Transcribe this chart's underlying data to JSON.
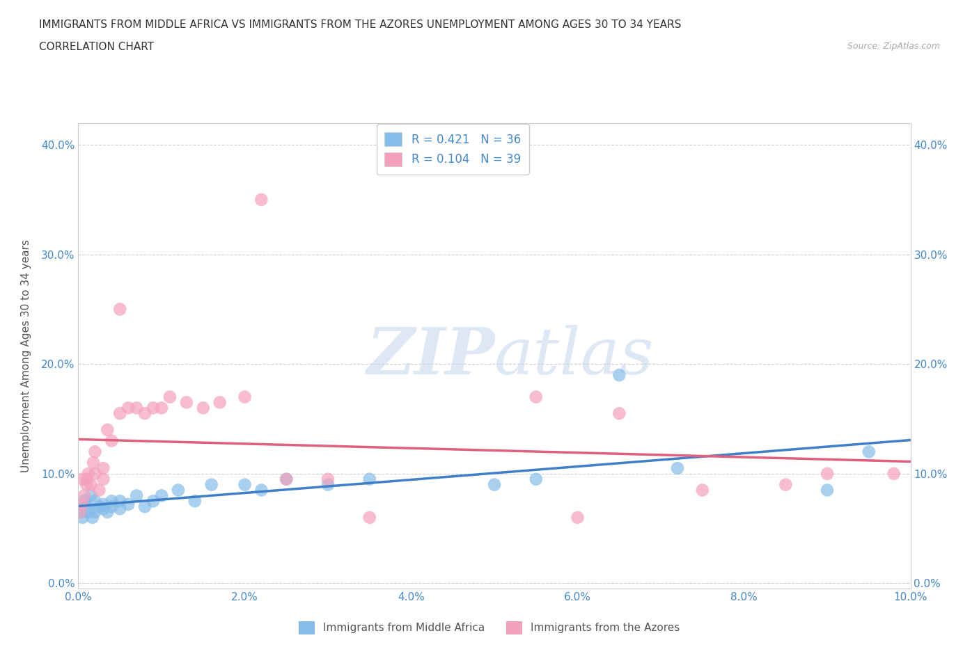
{
  "title_line1": "IMMIGRANTS FROM MIDDLE AFRICA VS IMMIGRANTS FROM THE AZORES UNEMPLOYMENT AMONG AGES 30 TO 34 YEARS",
  "title_line2": "CORRELATION CHART",
  "source_text": "Source: ZipAtlas.com",
  "ylabel": "Unemployment Among Ages 30 to 34 years",
  "xlim": [
    0.0,
    0.1
  ],
  "ylim": [
    -0.005,
    0.42
  ],
  "xticks": [
    0.0,
    0.02,
    0.04,
    0.06,
    0.08,
    0.1
  ],
  "yticks": [
    0.0,
    0.1,
    0.2,
    0.3,
    0.4
  ],
  "ytick_labels": [
    "0.0%",
    "10.0%",
    "20.0%",
    "30.0%",
    "40.0%"
  ],
  "xtick_labels": [
    "0.0%",
    "2.0%",
    "4.0%",
    "6.0%",
    "8.0%",
    "10.0%"
  ],
  "watermark_zip": "ZIP",
  "watermark_atlas": "atlas",
  "blue_color": "#85bce8",
  "pink_color": "#f4a0bc",
  "blue_line_color": "#3f7fc8",
  "pink_line_color": "#e06080",
  "legend_label1": "R = 0.421   N = 36",
  "legend_label2": "R = 0.104   N = 39",
  "series1_label": "Immigrants from Middle Africa",
  "series2_label": "Immigrants from the Azores",
  "blue_scatter_x": [
    0.0003,
    0.0005,
    0.0007,
    0.001,
    0.0012,
    0.0015,
    0.0017,
    0.002,
    0.002,
    0.0025,
    0.003,
    0.003,
    0.0035,
    0.004,
    0.004,
    0.005,
    0.005,
    0.006,
    0.007,
    0.008,
    0.009,
    0.01,
    0.012,
    0.014,
    0.016,
    0.02,
    0.022,
    0.025,
    0.03,
    0.035,
    0.05,
    0.055,
    0.065,
    0.072,
    0.09,
    0.095
  ],
  "blue_scatter_y": [
    0.065,
    0.06,
    0.075,
    0.07,
    0.065,
    0.08,
    0.06,
    0.075,
    0.065,
    0.07,
    0.068,
    0.072,
    0.065,
    0.07,
    0.075,
    0.068,
    0.075,
    0.072,
    0.08,
    0.07,
    0.075,
    0.08,
    0.085,
    0.075,
    0.09,
    0.09,
    0.085,
    0.095,
    0.09,
    0.095,
    0.09,
    0.095,
    0.19,
    0.105,
    0.085,
    0.12
  ],
  "pink_scatter_x": [
    0.0002,
    0.0004,
    0.0005,
    0.0007,
    0.001,
    0.001,
    0.0012,
    0.0015,
    0.0018,
    0.002,
    0.002,
    0.0025,
    0.003,
    0.003,
    0.0035,
    0.004,
    0.005,
    0.005,
    0.006,
    0.007,
    0.008,
    0.009,
    0.01,
    0.011,
    0.013,
    0.015,
    0.017,
    0.02,
    0.022,
    0.025,
    0.03,
    0.035,
    0.055,
    0.06,
    0.065,
    0.075,
    0.085,
    0.09,
    0.098
  ],
  "pink_scatter_y": [
    0.065,
    0.072,
    0.095,
    0.08,
    0.09,
    0.095,
    0.1,
    0.09,
    0.11,
    0.1,
    0.12,
    0.085,
    0.095,
    0.105,
    0.14,
    0.13,
    0.155,
    0.25,
    0.16,
    0.16,
    0.155,
    0.16,
    0.16,
    0.17,
    0.165,
    0.16,
    0.165,
    0.17,
    0.35,
    0.095,
    0.095,
    0.06,
    0.17,
    0.06,
    0.155,
    0.085,
    0.09,
    0.1,
    0.1
  ]
}
